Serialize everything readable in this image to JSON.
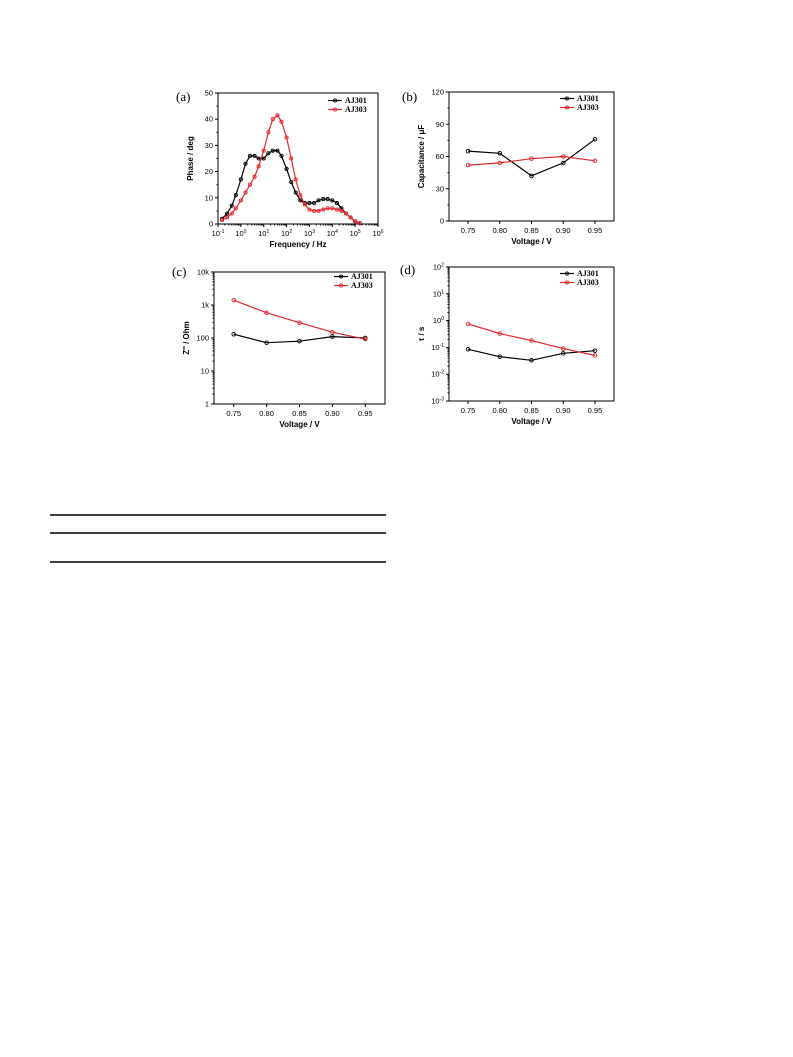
{
  "colors": {
    "AJ301": "#000000",
    "AJ303": "#e3262b"
  },
  "chart_data": [
    {
      "panel_label": "(a)",
      "type": "line",
      "xlabel": "Frequency / Hz",
      "ylabel": "Phase / deg",
      "x_scale": "log",
      "xlim": [
        0.1,
        1000000
      ],
      "ylim": [
        0,
        50
      ],
      "x_ticks": [
        {
          "b": "10",
          "e": "-1"
        },
        {
          "b": "10",
          "e": "0"
        },
        {
          "b": "10",
          "e": "1"
        },
        {
          "b": "10",
          "e": "2"
        },
        {
          "b": "10",
          "e": "3"
        },
        {
          "b": "10",
          "e": "4"
        },
        {
          "b": "10",
          "e": "5"
        },
        {
          "b": "10",
          "e": "6"
        }
      ],
      "y_ticks": [
        "0",
        "10",
        "20",
        "30",
        "40",
        "50"
      ],
      "legend": [
        "AJ301",
        "AJ303"
      ],
      "series": [
        {
          "name": "AJ301",
          "x": [
            0.15,
            0.25,
            0.4,
            0.6,
            1,
            1.6,
            2.5,
            4,
            6,
            10,
            16,
            25,
            40,
            60,
            100,
            160,
            250,
            400,
            630,
            1000,
            1600,
            2500,
            4000,
            6300,
            10000,
            16000,
            25000,
            40000,
            63000,
            100000,
            160000
          ],
          "y": [
            2,
            4,
            7,
            11,
            17,
            23,
            26,
            26,
            25,
            25,
            27,
            28,
            28,
            26,
            21,
            16,
            12,
            9,
            8,
            8,
            8,
            9,
            9.5,
            9.5,
            9,
            8,
            6,
            4,
            2.5,
            1,
            0.3
          ]
        },
        {
          "name": "AJ303",
          "x": [
            0.15,
            0.25,
            0.4,
            0.6,
            1,
            1.6,
            2.5,
            4,
            6,
            10,
            16,
            25,
            40,
            60,
            100,
            160,
            250,
            400,
            630,
            1000,
            1600,
            2500,
            4000,
            6300,
            10000,
            16000,
            25000,
            40000,
            63000,
            100000,
            160000
          ],
          "y": [
            1.5,
            2.5,
            4,
            6,
            9,
            12,
            15,
            18,
            22,
            28,
            35,
            40,
            41.5,
            39,
            33,
            25,
            17,
            11,
            7.5,
            5.5,
            5,
            5,
            5.5,
            6,
            6,
            5.5,
            5,
            4,
            2.5,
            1,
            0.3
          ]
        }
      ]
    },
    {
      "panel_label": "(b)",
      "type": "line",
      "xlabel": "Voltage / V",
      "ylabel": "Capacitance / μF",
      "xlim": [
        0.72,
        0.98
      ],
      "ylim": [
        0,
        120
      ],
      "x_ticks": [
        "0.75",
        "0.80",
        "0.85",
        "0.90",
        "0.95"
      ],
      "y_ticks": [
        "0",
        "30",
        "60",
        "90",
        "120"
      ],
      "legend": [
        "AJ301",
        "AJ303"
      ],
      "series": [
        {
          "name": "AJ301",
          "x": [
            0.75,
            0.8,
            0.85,
            0.9,
            0.95
          ],
          "y": [
            65,
            63,
            42,
            54,
            76
          ]
        },
        {
          "name": "AJ303",
          "x": [
            0.75,
            0.8,
            0.85,
            0.9,
            0.95
          ],
          "y": [
            52,
            54,
            58,
            60,
            56
          ]
        }
      ]
    },
    {
      "panel_label": "(c)",
      "type": "line",
      "xlabel": "Voltage / V",
      "ylabel": "Z'' / Ohm",
      "y_scale": "log",
      "xlim": [
        0.72,
        0.98
      ],
      "ylim": [
        1,
        10000
      ],
      "x_ticks": [
        "0.75",
        "0.80",
        "0.85",
        "0.90",
        "0.95"
      ],
      "y_ticks": [
        "1",
        "10",
        "100",
        "1k",
        "10k"
      ],
      "legend": [
        "AJ301",
        "AJ303"
      ],
      "series": [
        {
          "name": "AJ301",
          "x": [
            0.75,
            0.8,
            0.85,
            0.9,
            0.95
          ],
          "y": [
            130,
            72,
            80,
            110,
            100
          ]
        },
        {
          "name": "AJ303",
          "x": [
            0.75,
            0.8,
            0.85,
            0.9,
            0.95
          ],
          "y": [
            1400,
            580,
            290,
            150,
            92
          ]
        }
      ]
    },
    {
      "panel_label": "(d)",
      "type": "line",
      "xlabel": "Voltage / V",
      "ylabel": "τ / s",
      "y_scale": "log",
      "xlim": [
        0.72,
        0.98
      ],
      "ylim": [
        0.001,
        100
      ],
      "x_ticks": [
        "0.75",
        "0.80",
        "0.85",
        "0.90",
        "0.95"
      ],
      "y_ticks": [
        {
          "b": "10",
          "e": "-3"
        },
        {
          "b": "10",
          "e": "-2"
        },
        {
          "b": "10",
          "e": "-1"
        },
        {
          "b": "10",
          "e": "0"
        },
        {
          "b": "10",
          "e": "1"
        },
        {
          "b": "10",
          "e": "2"
        }
      ],
      "legend": [
        "AJ301",
        "AJ303"
      ],
      "series": [
        {
          "name": "AJ301",
          "x": [
            0.75,
            0.8,
            0.85,
            0.9,
            0.95
          ],
          "y": [
            0.085,
            0.045,
            0.033,
            0.06,
            0.075
          ]
        },
        {
          "name": "AJ303",
          "x": [
            0.75,
            0.8,
            0.85,
            0.9,
            0.95
          ],
          "y": [
            0.75,
            0.33,
            0.18,
            0.09,
            0.05
          ]
        }
      ]
    }
  ]
}
